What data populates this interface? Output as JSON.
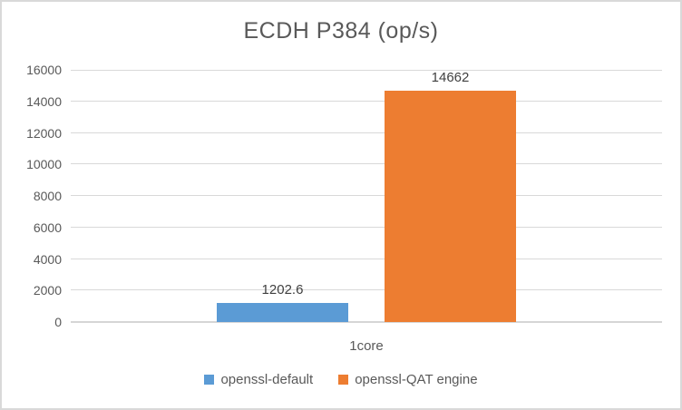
{
  "chart_data": {
    "type": "bar",
    "title": "ECDH P384 (op/s)",
    "categories": [
      "1core"
    ],
    "series": [
      {
        "name": "openssl-default",
        "value": 1202.6,
        "label": "1202.6",
        "color": "#5B9BD5"
      },
      {
        "name": "openssl-QAT engine",
        "value": 14662,
        "label": "14662",
        "color": "#ED7D31"
      }
    ],
    "xlabel": "",
    "ylabel": "",
    "ylim": [
      0,
      16000
    ],
    "yticks": [
      0,
      2000,
      4000,
      6000,
      8000,
      10000,
      12000,
      14000,
      16000
    ],
    "grid": "horizontal",
    "legend_position": "bottom",
    "data_labels": "above-bars"
  },
  "colors": {
    "grid": "#d9d9d9",
    "axis_text": "#595959",
    "data_label_text": "#404040",
    "chart_border": "#d9d9d9",
    "background": "#ffffff"
  }
}
